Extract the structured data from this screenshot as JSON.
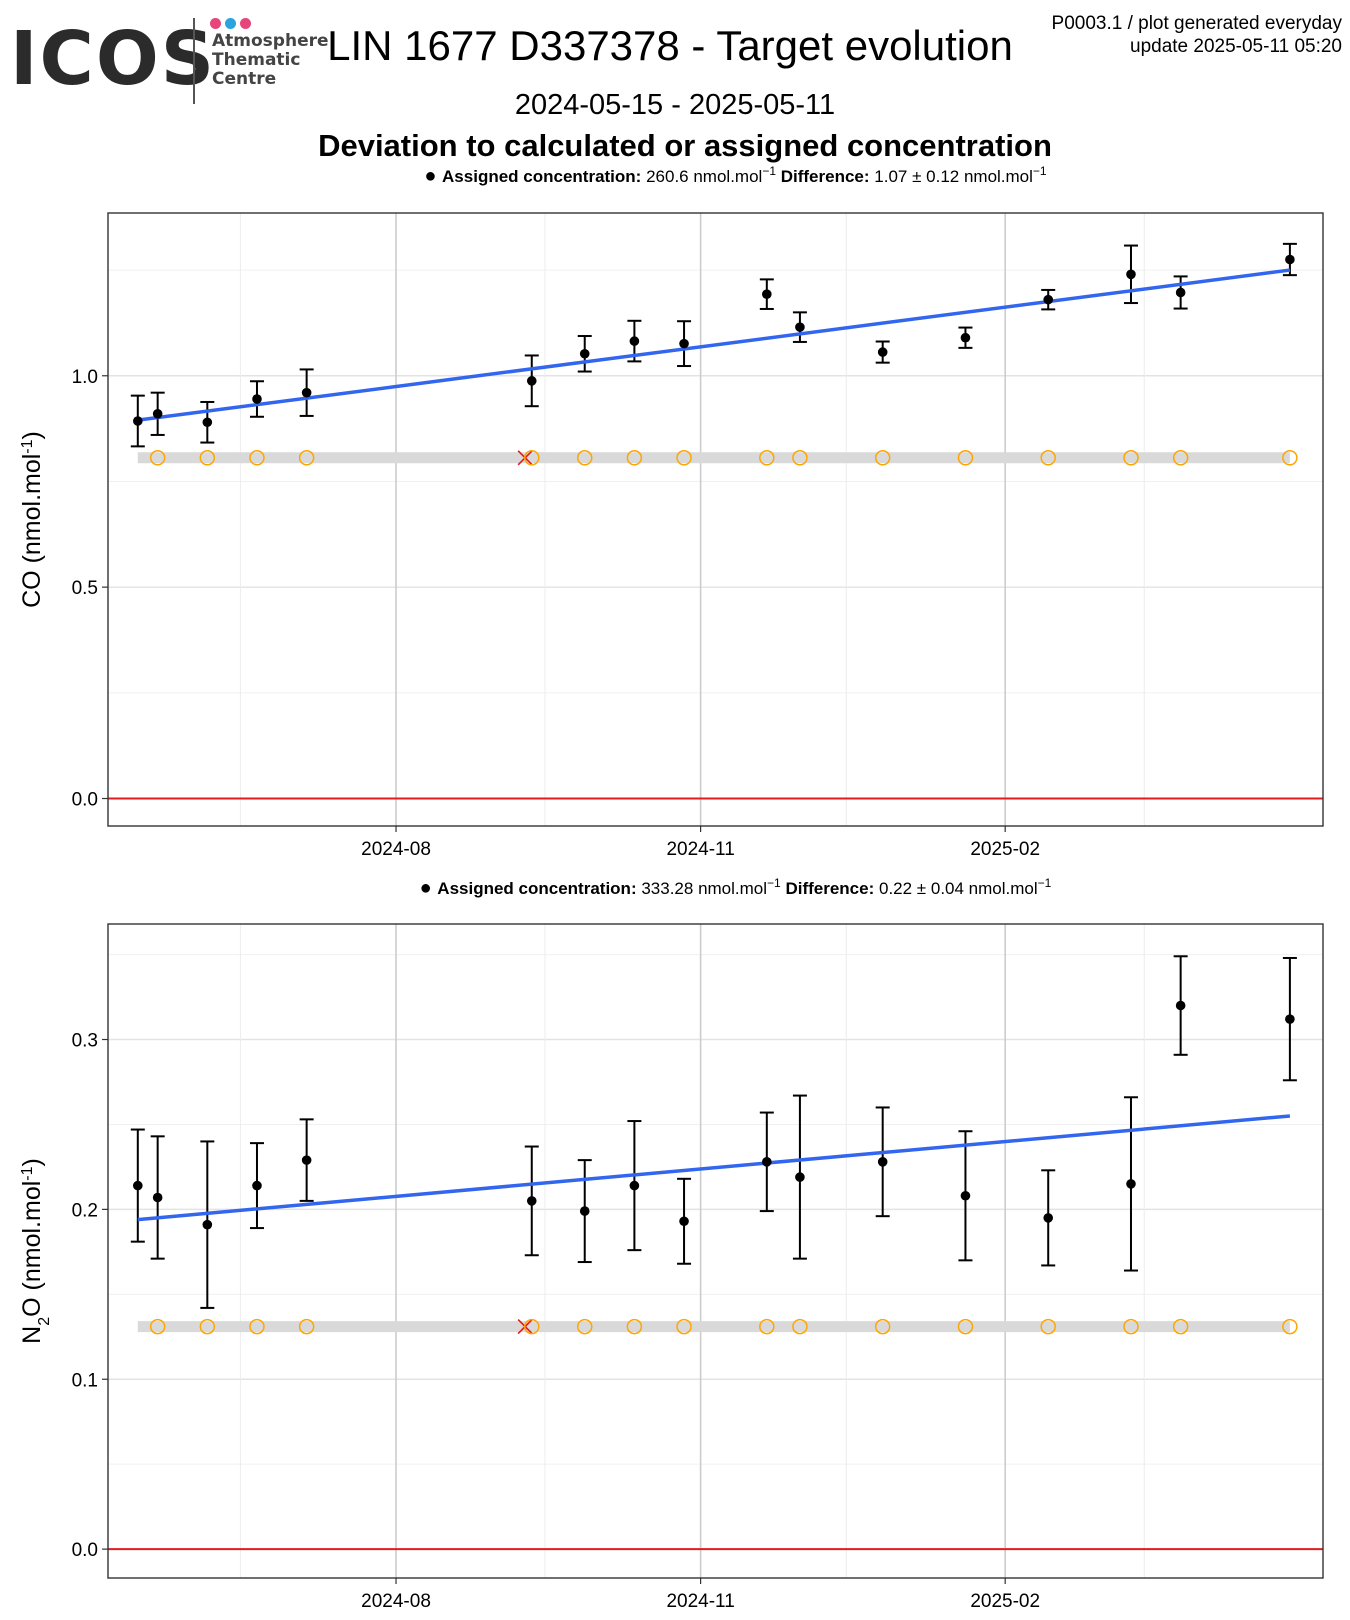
{
  "header": {
    "logo_word": "ICOS",
    "logo_lines": [
      "Atmosphere",
      "Thematic",
      "Centre"
    ],
    "logo_dot_colors": [
      "#e8447a",
      "#2aa3df",
      "#e8447a"
    ],
    "title": "LIN 1677 D337378 - Target evolution",
    "meta_line1": "P0003.1 / plot generated everyday",
    "meta_line2": "update  2025-05-11 05:20",
    "date_range": "2024-05-15 - 2025-05-11",
    "section_title": "Deviation to calculated or assigned concentration"
  },
  "colors": {
    "points": "#000000",
    "trend": "#3366ee",
    "zero_line": "#e41a1c",
    "flag_circle": "#ffa500",
    "flag_cross": "#e41a1c",
    "flag_band": "#d9d9d9",
    "grid_major": "#cccccc",
    "grid_minor": "#ebebeb"
  },
  "chart_data": [
    {
      "type": "scatter",
      "ylabel": "CO (nmol.mol",
      "ylabel_sup": "-1",
      "ylabel_end": ")",
      "subtitle": {
        "assigned_label": "Assigned concentration:",
        "assigned_value": "260.6 nmol.mol",
        "assigned_sup": "−1",
        "diff_label": "Difference:",
        "diff_value": "1.07 ± 0.12 nmol.mol",
        "diff_sup": "−1"
      },
      "x_ticks": [
        "2024-08",
        "2024-11",
        "2025-02"
      ],
      "y_ticks": [
        "0.0",
        "0.5",
        "1.0"
      ],
      "ylim": [
        -0.065,
        1.385
      ],
      "x": [
        "2024-05-15",
        "2024-05-21",
        "2024-06-05",
        "2024-06-20",
        "2024-07-05",
        "2024-09-11",
        "2024-09-27",
        "2024-10-12",
        "2024-10-27",
        "2024-11-21",
        "2024-12-01",
        "2024-12-26",
        "2025-01-20",
        "2025-02-14",
        "2025-03-11",
        "2025-03-26",
        "2025-04-28"
      ],
      "y": [
        0.893,
        0.91,
        0.89,
        0.945,
        0.96,
        0.988,
        1.052,
        1.082,
        1.076,
        1.193,
        1.115,
        1.056,
        1.09,
        1.18,
        1.24,
        1.197,
        1.275
      ],
      "yerr": [
        0.06,
        0.05,
        0.048,
        0.042,
        0.055,
        0.06,
        0.042,
        0.048,
        0.053,
        0.035,
        0.035,
        0.025,
        0.024,
        0.023,
        0.068,
        0.038,
        0.037
      ],
      "trend": {
        "x": [
          "2024-05-15",
          "2025-04-28"
        ],
        "y": [
          0.895,
          1.25
        ]
      },
      "flag_level": 0.806,
      "flag_band": [
        "2024-05-15",
        "2025-04-28"
      ],
      "flags": [
        {
          "x": "2024-05-21",
          "kind": "circle"
        },
        {
          "x": "2024-06-05",
          "kind": "circle"
        },
        {
          "x": "2024-06-20",
          "kind": "circle"
        },
        {
          "x": "2024-07-05",
          "kind": "circle"
        },
        {
          "x": "2024-09-09",
          "kind": "cross"
        },
        {
          "x": "2024-09-11",
          "kind": "circle"
        },
        {
          "x": "2024-09-27",
          "kind": "circle"
        },
        {
          "x": "2024-10-12",
          "kind": "circle"
        },
        {
          "x": "2024-10-27",
          "kind": "circle"
        },
        {
          "x": "2024-11-21",
          "kind": "circle"
        },
        {
          "x": "2024-12-01",
          "kind": "circle"
        },
        {
          "x": "2024-12-26",
          "kind": "circle"
        },
        {
          "x": "2025-01-20",
          "kind": "circle"
        },
        {
          "x": "2025-02-14",
          "kind": "circle"
        },
        {
          "x": "2025-03-11",
          "kind": "circle"
        },
        {
          "x": "2025-03-26",
          "kind": "circle"
        },
        {
          "x": "2025-04-28",
          "kind": "circle"
        }
      ],
      "zero_line": 0
    },
    {
      "type": "scatter",
      "ylabel": "N",
      "ylabel_sub": "2",
      "ylabel_mid": "O (nmol.mol",
      "ylabel_sup": "-1",
      "ylabel_end": ")",
      "subtitle": {
        "assigned_label": "Assigned concentration:",
        "assigned_value": "333.28 nmol.mol",
        "assigned_sup": "−1",
        "diff_label": "Difference:",
        "diff_value": "0.22 ± 0.04 nmol.mol",
        "diff_sup": "−1"
      },
      "x_ticks": [
        "2024-08",
        "2024-11",
        "2025-02"
      ],
      "y_ticks": [
        "0.0",
        "0.1",
        "0.2",
        "0.3"
      ],
      "ylim": [
        -0.017,
        0.368
      ],
      "x": [
        "2024-05-15",
        "2024-05-21",
        "2024-06-05",
        "2024-06-20",
        "2024-07-05",
        "2024-09-11",
        "2024-09-27",
        "2024-10-12",
        "2024-10-27",
        "2024-11-21",
        "2024-12-01",
        "2024-12-26",
        "2025-01-20",
        "2025-02-14",
        "2025-03-11",
        "2025-03-26",
        "2025-04-28"
      ],
      "y": [
        0.214,
        0.207,
        0.191,
        0.214,
        0.229,
        0.205,
        0.199,
        0.214,
        0.193,
        0.228,
        0.219,
        0.228,
        0.208,
        0.195,
        0.215,
        0.32,
        0.312
      ],
      "yerr": [
        0.033,
        0.036,
        0.049,
        0.025,
        0.024,
        0.032,
        0.03,
        0.038,
        0.025,
        0.029,
        0.048,
        0.032,
        0.038,
        0.028,
        0.051,
        0.029,
        0.036
      ],
      "trend": {
        "x": [
          "2024-05-15",
          "2025-04-28"
        ],
        "y": [
          0.194,
          0.255
        ]
      },
      "flag_level": 0.131,
      "flag_band": [
        "2024-05-15",
        "2025-04-28"
      ],
      "flags": [
        {
          "x": "2024-05-21",
          "kind": "circle"
        },
        {
          "x": "2024-06-05",
          "kind": "circle"
        },
        {
          "x": "2024-06-20",
          "kind": "circle"
        },
        {
          "x": "2024-07-05",
          "kind": "circle"
        },
        {
          "x": "2024-09-09",
          "kind": "cross"
        },
        {
          "x": "2024-09-11",
          "kind": "circle"
        },
        {
          "x": "2024-09-27",
          "kind": "circle"
        },
        {
          "x": "2024-10-12",
          "kind": "circle"
        },
        {
          "x": "2024-10-27",
          "kind": "circle"
        },
        {
          "x": "2024-11-21",
          "kind": "circle"
        },
        {
          "x": "2024-12-01",
          "kind": "circle"
        },
        {
          "x": "2024-12-26",
          "kind": "circle"
        },
        {
          "x": "2025-01-20",
          "kind": "circle"
        },
        {
          "x": "2025-02-14",
          "kind": "circle"
        },
        {
          "x": "2025-03-11",
          "kind": "circle"
        },
        {
          "x": "2025-03-26",
          "kind": "circle"
        },
        {
          "x": "2025-04-28",
          "kind": "circle"
        }
      ],
      "zero_line": 0
    }
  ]
}
